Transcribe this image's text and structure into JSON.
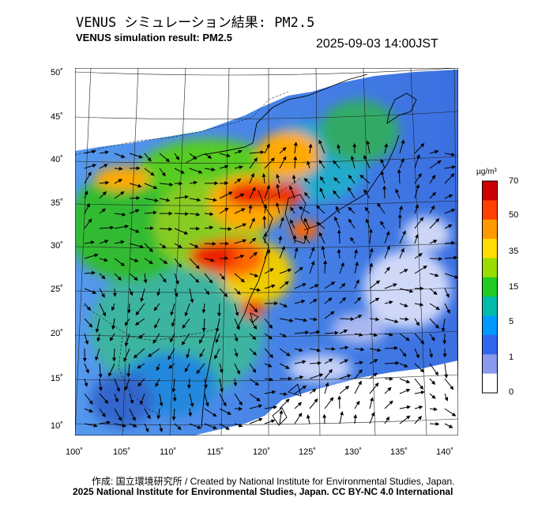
{
  "header": {
    "title_jp": "VENUS シミュレーション結果: PM2.5",
    "title_en": "VENUS simulation result: PM2.5",
    "timestamp": "2025-09-03 14:00JST"
  },
  "map": {
    "lat_ticks": [
      "50˚",
      "45˚",
      "40˚",
      "35˚",
      "30˚",
      "25˚",
      "20˚",
      "15˚",
      "10˚"
    ],
    "lon_ticks": [
      "100˚",
      "105˚",
      "110˚",
      "115˚",
      "120˚",
      "125˚",
      "130˚",
      "135˚",
      "140˚"
    ]
  },
  "colorbar": {
    "unit": "µg/m³",
    "labels": [
      "70",
      "50",
      "35",
      "15",
      "5",
      "1",
      "0"
    ],
    "colors": [
      "#cc0000",
      "#ff4000",
      "#ff9900",
      "#ffdd00",
      "#99dd00",
      "#22cc22",
      "#00bbaa",
      "#0099ff",
      "#3366ee",
      "#8899ee",
      "#ffffff"
    ]
  },
  "footer": {
    "credit_jp_en": "作成: 国立環境研究所 / Created by National Institute for Environmental Studies, Japan.",
    "copyright": "2025 National Institute for Environmental Studies, Japan. CC BY-NC 4.0 International"
  }
}
